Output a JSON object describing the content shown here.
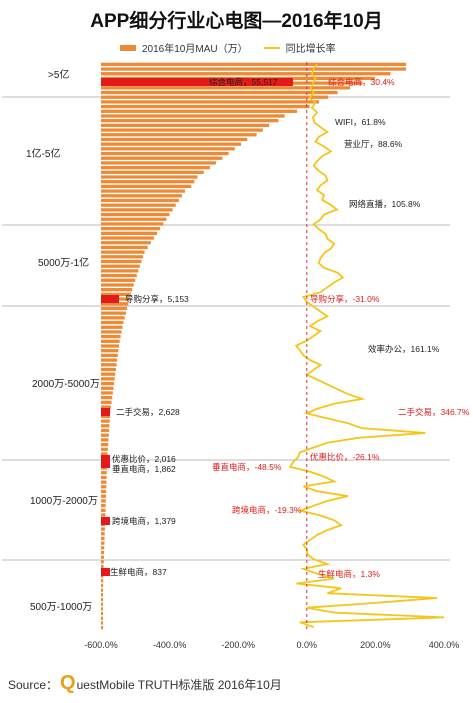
{
  "chart_data": {
    "type": "bar+line",
    "title": "APP细分行业心电图—2016年10月",
    "legend": {
      "bar": "2016年10月MAU（万）",
      "line": "同比增长率"
    },
    "x_axis": {
      "min": -600,
      "max": 400,
      "ticks": [
        "-600.0%",
        "-400.0%",
        "-200.0%",
        "0.0%",
        "200.0%",
        "400.0%"
      ]
    },
    "tiers": [
      ">5亿",
      "1亿-5亿",
      "5000万-1亿",
      "2000万-5000万",
      "1000万-2000万",
      "500万-1000万"
    ],
    "bar_values": [
      98,
      98,
      93,
      88,
      84,
      80,
      76,
      73,
      70,
      67,
      63,
      59,
      57,
      54,
      52,
      50,
      47,
      45,
      43,
      41,
      39,
      37,
      35,
      33,
      31,
      30,
      29,
      27,
      26,
      25,
      24,
      23,
      22,
      21,
      20,
      19,
      18,
      17,
      16,
      15,
      14,
      13.5,
      13,
      12.5,
      12,
      11.5,
      11,
      10.5,
      10,
      9.6,
      9.2,
      8.8,
      8.4,
      8,
      7.6,
      7.2,
      6.9,
      6.6,
      6.3,
      6,
      5.8,
      5.6,
      5.4,
      5.2,
      5,
      4.8,
      4.6,
      4.4,
      4.2,
      4,
      3.8,
      3.6,
      3.4,
      3.2,
      3,
      2.9,
      2.8,
      2.7,
      2.6,
      2.5,
      2.4,
      2.3,
      2.2,
      2.1,
      2.0,
      1.95,
      1.9,
      1.85,
      1.8,
      1.75,
      1.7,
      1.65,
      1.6,
      1.55,
      1.5,
      1.45,
      1.4,
      1.35,
      1.3,
      1.25,
      1.2,
      1.15,
      1.1,
      1.05,
      1.0,
      0.95,
      0.9,
      0.85,
      0.8,
      0.75,
      0.7,
      0.65,
      0.6,
      0.55,
      0.5,
      0.45,
      0.4,
      0.35,
      0.3,
      0.25,
      0.2
    ],
    "growth_values": [
      30,
      20,
      15,
      25,
      18,
      12,
      20,
      8,
      25,
      15,
      30,
      18,
      22,
      40,
      60,
      35,
      25,
      50,
      70,
      45,
      30,
      20,
      35,
      55,
      60,
      40,
      30,
      50,
      45,
      70,
      88,
      50,
      40,
      20,
      35,
      55,
      60,
      80,
      70,
      50,
      40,
      35,
      50,
      90,
      105,
      80,
      60,
      40,
      -10,
      0,
      20,
      40,
      60,
      30,
      10,
      40,
      20,
      0,
      -31,
      -20,
      -10,
      10,
      40,
      20,
      0,
      30,
      60,
      90,
      120,
      161,
      80,
      30,
      0,
      60,
      120,
      160,
      346,
      150,
      60,
      20,
      -20,
      -26,
      -40,
      -48,
      10,
      50,
      80,
      -10,
      30,
      120,
      60,
      20,
      -19,
      40,
      80,
      100,
      60,
      30,
      10,
      -10,
      0,
      1.3,
      20,
      60,
      -10,
      30,
      80,
      -30,
      100,
      60,
      380,
      200,
      0,
      80,
      400,
      -20,
      20
    ],
    "highlighted": [
      {
        "label": "综合电商",
        "mau": "55,517",
        "growth": "30.4%"
      },
      {
        "label": "导购分享",
        "mau": "5,153",
        "growth": "-31.0%"
      },
      {
        "label": "二手交易",
        "mau": "2,628",
        "growth": "346.7%"
      },
      {
        "label": "优惠比价",
        "mau": "2,016",
        "growth": "-26.1%"
      },
      {
        "label": "垂直电商",
        "mau": "1,862",
        "growth": "-48.5%"
      },
      {
        "label": "跨境电商",
        "mau": "1,379",
        "growth": "-19.3%"
      },
      {
        "label": "生鲜电商",
        "mau": "837",
        "growth": "1.3%"
      }
    ],
    "annotations": [
      {
        "text": "WIFI，61.8%"
      },
      {
        "text": "营业厅，88.6%"
      },
      {
        "text": "网络直播，105.8%"
      },
      {
        "text": "效率办公，161.1%"
      }
    ]
  },
  "source": {
    "prefix": "Source：",
    "q": "Q",
    "rest": "uestMobile TRUTH标准版 2016年10月"
  }
}
